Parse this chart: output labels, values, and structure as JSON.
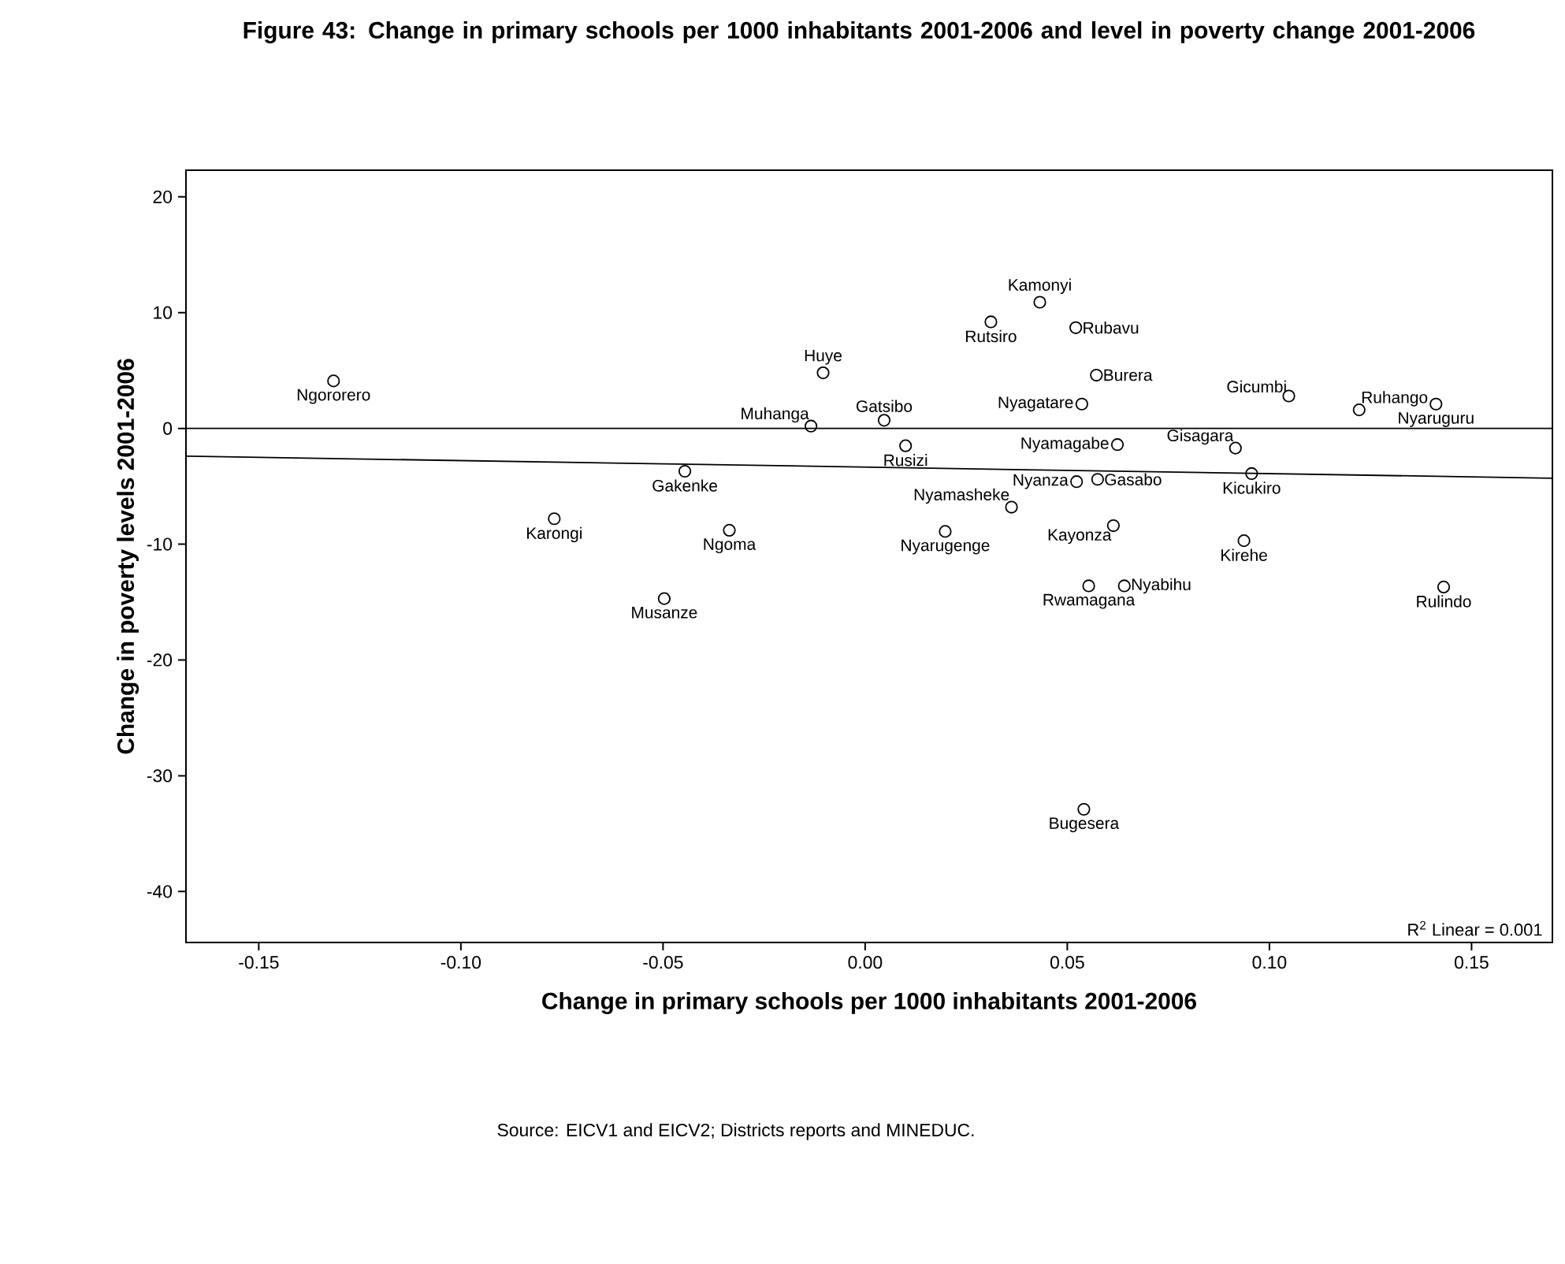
{
  "chart_data": {
    "type": "scatter",
    "title": "Figure 43: Change in primary schools per 1000 inhabitants 2001-2006 and level in poverty change 2001-2006",
    "xlabel": "Change in primary schools per 1000 inhabitants 2001-2006",
    "ylabel": "Change in poverty levels 2001-2006",
    "xlim": [
      -0.168,
      0.17
    ],
    "ylim": [
      -44.4,
      22.3
    ],
    "xticks": [
      {
        "value": -0.15,
        "label": "-0.15"
      },
      {
        "value": -0.1,
        "label": "-0.10"
      },
      {
        "value": -0.05,
        "label": "-0.05"
      },
      {
        "value": 0,
        "label": "0.00"
      },
      {
        "value": 0.05,
        "label": "0.05"
      },
      {
        "value": 0.1,
        "label": "0.10"
      },
      {
        "value": 0.15,
        "label": "0.15"
      }
    ],
    "yticks": [
      20,
      10,
      0,
      -10,
      -20,
      -30,
      -40
    ],
    "marker": "circle",
    "grid": false,
    "series": [
      {
        "color": "#000000",
        "x": [
          -0.1315,
          -0.0134,
          -0.0104,
          -0.0446,
          -0.0769,
          -0.0336,
          -0.0497,
          0.0047,
          0.01,
          0.0311,
          0.0432,
          0.0521,
          0.0572,
          0.0536,
          0.0624,
          0.0523,
          0.0575,
          0.0362,
          0.0198,
          0.0614,
          0.0553,
          0.0641,
          0.0916,
          0.0956,
          0.0937,
          0.1048,
          0.1222,
          0.1412,
          0.1431,
          0.0541
        ],
        "values": [
          4.1,
          0.2,
          4.8,
          -3.7,
          -7.8,
          -8.8,
          -14.7,
          0.7,
          -1.5,
          9.2,
          10.9,
          8.7,
          4.6,
          2.1,
          -1.4,
          -4.6,
          -4.4,
          -6.8,
          -8.9,
          -8.4,
          -13.6,
          -13.6,
          -1.7,
          -3.9,
          -9.7,
          2.8,
          1.6,
          2.1,
          -13.7,
          -32.9
        ]
      },
      {
        "type": "line",
        "marker": "none",
        "color": "#000000",
        "x": [
          -0.168,
          0.17
        ],
        "values": [
          -2.4,
          -4.3
        ]
      }
    ],
    "ref_lines": [
      {
        "axis": "y",
        "value": 0,
        "color": "#000000"
      }
    ],
    "annotations": [
      "Source: EICV1 and EICV2; Districts reports and MINEDUC.",
      "R$^{2}$ Linear = 0.001",
      {
        "text": "Ngororero",
        "x": -0.1315,
        "y": 4.1
      },
      {
        "text": "Muhanga",
        "x": -0.0134,
        "y": 0.2
      },
      {
        "text": "Huye",
        "x": -0.0104,
        "y": 4.8
      },
      {
        "text": "Gakenke",
        "x": -0.0446,
        "y": -3.7
      },
      {
        "text": "Karongi",
        "x": -0.0769,
        "y": -7.8
      },
      {
        "text": "Ngoma",
        "x": -0.0336,
        "y": -8.8
      },
      {
        "text": "Musanze",
        "x": -0.0497,
        "y": -14.7
      },
      {
        "text": "Gatsibo",
        "x": 0.0047,
        "y": 0.7
      },
      {
        "text": "Rusizi",
        "x": 0.01,
        "y": -1.5
      },
      {
        "text": "Rutsiro",
        "x": 0.0311,
        "y": 9.2
      },
      {
        "text": "Kamonyi",
        "x": 0.0432,
        "y": 10.9
      },
      {
        "text": "Rubavu",
        "x": 0.0521,
        "y": 8.7
      },
      {
        "text": "Burera",
        "x": 0.0572,
        "y": 4.6
      },
      {
        "text": "Nyagatare",
        "x": 0.0536,
        "y": 2.1
      },
      {
        "text": "Nyamagabe",
        "x": 0.0624,
        "y": -1.4
      },
      {
        "text": "Nyanza",
        "x": 0.0523,
        "y": -4.6
      },
      {
        "text": "Gasabo",
        "x": 0.0575,
        "y": -4.4
      },
      {
        "text": "Nyamasheke",
        "x": 0.0362,
        "y": -6.8
      },
      {
        "text": "Nyarugenge",
        "x": 0.0198,
        "y": -8.9
      },
      {
        "text": "Kayonza",
        "x": 0.0614,
        "y": -8.4
      },
      {
        "text": "Rwamagana",
        "x": 0.0553,
        "y": -13.6
      },
      {
        "text": "Nyabihu",
        "x": 0.0641,
        "y": -13.6
      },
      {
        "text": "Gisagara",
        "x": 0.0916,
        "y": -1.7
      },
      {
        "text": "Kicukiro",
        "x": 0.0956,
        "y": -3.9
      },
      {
        "text": "Kirehe",
        "x": 0.0937,
        "y": -9.7
      },
      {
        "text": "Gicumbi",
        "x": 0.1048,
        "y": 2.8
      },
      {
        "text": "Ruhango",
        "x": 0.1222,
        "y": 1.6
      },
      {
        "text": "Nyaruguru",
        "x": 0.1412,
        "y": 2.1
      },
      {
        "text": "Rulindo",
        "x": 0.1431,
        "y": -13.7
      },
      {
        "text": "Bugesera",
        "x": 0.0541,
        "y": -32.9
      }
    ]
  }
}
